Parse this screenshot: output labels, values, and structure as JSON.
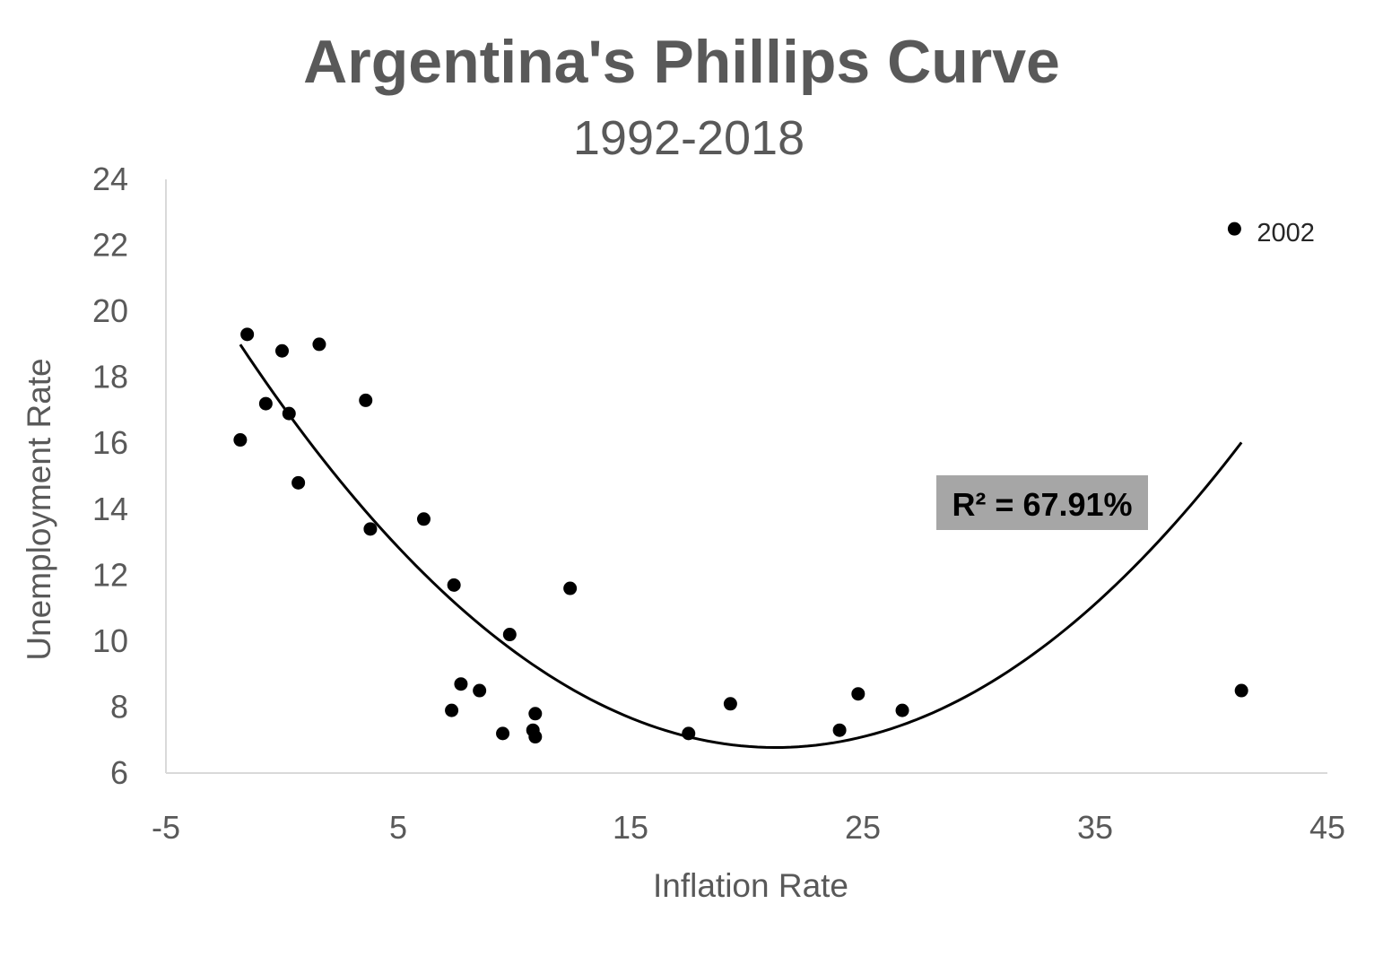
{
  "chart_data": {
    "type": "scatter",
    "title": "Argentina's Phillips Curve",
    "subtitle": "1992-2018",
    "xlabel": "Inflation Rate",
    "ylabel": "Unemployment Rate",
    "xlim": [
      -5,
      45
    ],
    "ylim": [
      6,
      24
    ],
    "x_ticks": [
      -5,
      5,
      15,
      25,
      35,
      45
    ],
    "y_ticks": [
      6,
      8,
      10,
      12,
      14,
      16,
      18,
      20,
      22,
      24
    ],
    "x_tick_labels": [
      "-5",
      "5",
      "15",
      "25",
      "35",
      "45"
    ],
    "y_tick_labels": [
      "6",
      "8",
      "10",
      "12",
      "14",
      "16",
      "18",
      "20",
      "22",
      "24"
    ],
    "grid": false,
    "legend": "none",
    "points": [
      {
        "x": -1.8,
        "y": 16.1
      },
      {
        "x": -1.5,
        "y": 19.3
      },
      {
        "x": -0.7,
        "y": 17.2
      },
      {
        "x": 0.0,
        "y": 18.8
      },
      {
        "x": 0.3,
        "y": 16.9
      },
      {
        "x": 0.7,
        "y": 14.8
      },
      {
        "x": 1.6,
        "y": 19.0
      },
      {
        "x": 3.6,
        "y": 17.3
      },
      {
        "x": 3.8,
        "y": 13.4
      },
      {
        "x": 6.1,
        "y": 13.7
      },
      {
        "x": 7.3,
        "y": 7.9
      },
      {
        "x": 7.4,
        "y": 11.7
      },
      {
        "x": 7.7,
        "y": 8.7
      },
      {
        "x": 8.5,
        "y": 8.5
      },
      {
        "x": 9.5,
        "y": 7.2
      },
      {
        "x": 9.8,
        "y": 10.2
      },
      {
        "x": 10.8,
        "y": 7.3
      },
      {
        "x": 10.9,
        "y": 7.1
      },
      {
        "x": 10.9,
        "y": 7.8
      },
      {
        "x": 12.4,
        "y": 11.6
      },
      {
        "x": 17.5,
        "y": 7.2
      },
      {
        "x": 19.3,
        "y": 8.1
      },
      {
        "x": 24.0,
        "y": 7.3
      },
      {
        "x": 24.8,
        "y": 8.4
      },
      {
        "x": 26.7,
        "y": 7.9
      },
      {
        "x": 41.0,
        "y": 22.5,
        "label": "2002"
      },
      {
        "x": 41.3,
        "y": 8.5
      }
    ],
    "trendline": {
      "type": "polynomial",
      "order": 2,
      "x_range": [
        -1.8,
        41.3
      ],
      "samples": [
        {
          "x": -1.8,
          "y": 18.7
        },
        {
          "x": 2.0,
          "y": 15.5
        },
        {
          "x": 6.0,
          "y": 12.5
        },
        {
          "x": 10.0,
          "y": 9.6
        },
        {
          "x": 14.0,
          "y": 7.9
        },
        {
          "x": 18.0,
          "y": 6.9
        },
        {
          "x": 21.0,
          "y": 6.7
        },
        {
          "x": 24.0,
          "y": 6.9
        },
        {
          "x": 28.0,
          "y": 7.8
        },
        {
          "x": 32.0,
          "y": 9.5
        },
        {
          "x": 36.0,
          "y": 11.9
        },
        {
          "x": 39.0,
          "y": 14.1
        },
        {
          "x": 41.3,
          "y": 15.9
        }
      ],
      "r_squared_label": "R² = 67.91%"
    },
    "colors": {
      "points": "#000000",
      "trendline": "#000000",
      "axis": "#d9d9d9",
      "text": "#595959",
      "r2_box": "#a6a6a6"
    }
  }
}
